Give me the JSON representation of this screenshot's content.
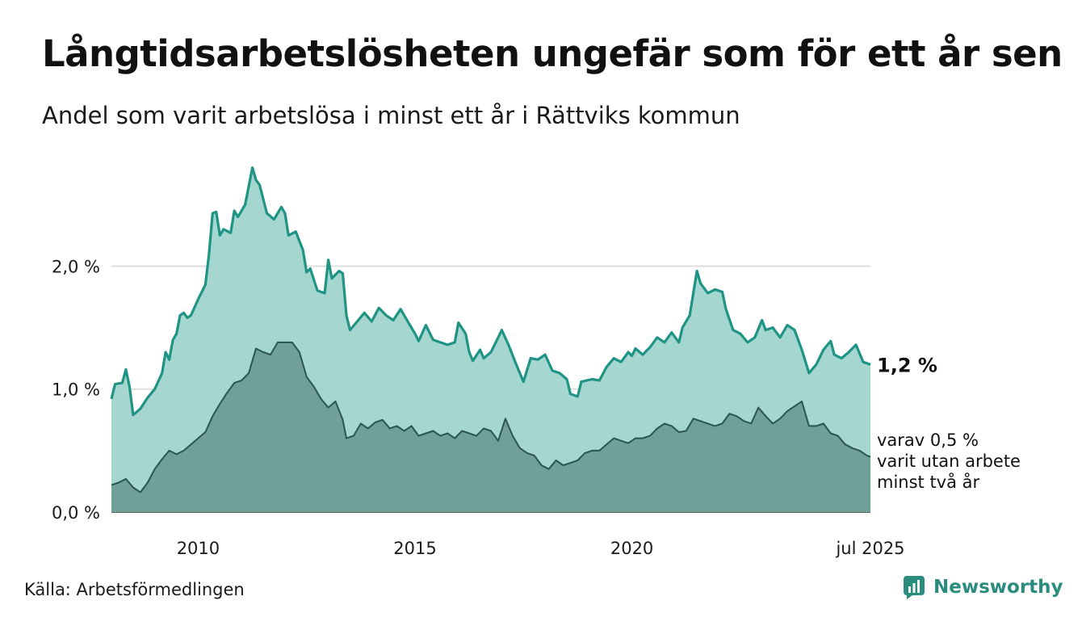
{
  "title": "Långtidsarbetslösheten ungefär som för ett år sen",
  "subtitle": "Andel som varit arbetslösa i minst ett år i Rättviks kommun",
  "source": "Källa: Arbetsförmedlingen",
  "brand": {
    "name": "Newsworthy",
    "icon": "newsworthy-logo-icon"
  },
  "colors": {
    "total_fill": "#a5d6d0",
    "total_line": "#1f9485",
    "sub_fill": "#70a098",
    "sub_line": "#2c5550",
    "grid": "#dddddd",
    "brand": "#2a8c7e"
  },
  "chart_data": {
    "type": "area",
    "xlim": [
      "2008-01",
      "2025-07"
    ],
    "ylim": [
      0,
      2.85
    ],
    "grid": true,
    "y_ticks": [
      {
        "value": 0,
        "label": "0,0 %"
      },
      {
        "value": 1,
        "label": "1,0 %"
      },
      {
        "value": 2,
        "label": "2,0 %"
      }
    ],
    "x_ticks": [
      {
        "date": "2010-01",
        "label": "2010"
      },
      {
        "date": "2015-01",
        "label": "2015"
      },
      {
        "date": "2020-01",
        "label": "2020"
      },
      {
        "date": "2025-07",
        "label": "jul 2025"
      }
    ],
    "series": [
      {
        "id": "total",
        "end_label": "1,2 %",
        "points": [
          [
            "2008-01",
            0.92
          ],
          [
            "2008-02",
            1.04
          ],
          [
            "2008-04",
            1.05
          ],
          [
            "2008-05",
            1.16
          ],
          [
            "2008-06",
            1.02
          ],
          [
            "2008-07",
            0.79
          ],
          [
            "2008-09",
            0.84
          ],
          [
            "2008-11",
            0.93
          ],
          [
            "2009-01",
            1.0
          ],
          [
            "2009-03",
            1.13
          ],
          [
            "2009-04",
            1.3
          ],
          [
            "2009-05",
            1.24
          ],
          [
            "2009-06",
            1.4
          ],
          [
            "2009-07",
            1.45
          ],
          [
            "2009-08",
            1.6
          ],
          [
            "2009-09",
            1.62
          ],
          [
            "2009-10",
            1.58
          ],
          [
            "2009-11",
            1.6
          ],
          [
            "2010-01",
            1.73
          ],
          [
            "2010-03",
            1.85
          ],
          [
            "2010-04",
            2.1
          ],
          [
            "2010-05",
            2.43
          ],
          [
            "2010-06",
            2.44
          ],
          [
            "2010-07",
            2.25
          ],
          [
            "2010-08",
            2.3
          ],
          [
            "2010-10",
            2.27
          ],
          [
            "2010-11",
            2.45
          ],
          [
            "2010-12",
            2.4
          ],
          [
            "2011-02",
            2.5
          ],
          [
            "2011-04",
            2.8
          ],
          [
            "2011-05",
            2.7
          ],
          [
            "2011-06",
            2.66
          ],
          [
            "2011-08",
            2.43
          ],
          [
            "2011-10",
            2.38
          ],
          [
            "2011-12",
            2.48
          ],
          [
            "2012-01",
            2.43
          ],
          [
            "2012-02",
            2.25
          ],
          [
            "2012-04",
            2.28
          ],
          [
            "2012-06",
            2.13
          ],
          [
            "2012-07",
            1.95
          ],
          [
            "2012-08",
            1.98
          ],
          [
            "2012-10",
            1.8
          ],
          [
            "2012-12",
            1.78
          ],
          [
            "2013-01",
            2.05
          ],
          [
            "2013-02",
            1.9
          ],
          [
            "2013-04",
            1.96
          ],
          [
            "2013-05",
            1.94
          ],
          [
            "2013-06",
            1.6
          ],
          [
            "2013-07",
            1.48
          ],
          [
            "2013-09",
            1.55
          ],
          [
            "2013-11",
            1.62
          ],
          [
            "2014-01",
            1.55
          ],
          [
            "2014-03",
            1.66
          ],
          [
            "2014-05",
            1.6
          ],
          [
            "2014-07",
            1.56
          ],
          [
            "2014-09",
            1.65
          ],
          [
            "2014-11",
            1.55
          ],
          [
            "2015-01",
            1.45
          ],
          [
            "2015-02",
            1.39
          ],
          [
            "2015-04",
            1.52
          ],
          [
            "2015-06",
            1.4
          ],
          [
            "2015-08",
            1.38
          ],
          [
            "2015-10",
            1.36
          ],
          [
            "2015-12",
            1.38
          ],
          [
            "2016-01",
            1.54
          ],
          [
            "2016-03",
            1.45
          ],
          [
            "2016-04",
            1.3
          ],
          [
            "2016-05",
            1.23
          ],
          [
            "2016-07",
            1.32
          ],
          [
            "2016-08",
            1.25
          ],
          [
            "2016-10",
            1.3
          ],
          [
            "2016-12",
            1.42
          ],
          [
            "2017-01",
            1.48
          ],
          [
            "2017-03",
            1.35
          ],
          [
            "2017-05",
            1.2
          ],
          [
            "2017-07",
            1.06
          ],
          [
            "2017-09",
            1.25
          ],
          [
            "2017-11",
            1.24
          ],
          [
            "2018-01",
            1.28
          ],
          [
            "2018-03",
            1.15
          ],
          [
            "2018-05",
            1.13
          ],
          [
            "2018-07",
            1.08
          ],
          [
            "2018-08",
            0.96
          ],
          [
            "2018-10",
            0.94
          ],
          [
            "2018-11",
            1.06
          ],
          [
            "2019-02",
            1.08
          ],
          [
            "2019-04",
            1.07
          ],
          [
            "2019-06",
            1.18
          ],
          [
            "2019-08",
            1.25
          ],
          [
            "2019-10",
            1.22
          ],
          [
            "2019-12",
            1.3
          ],
          [
            "2020-01",
            1.27
          ],
          [
            "2020-02",
            1.33
          ],
          [
            "2020-04",
            1.28
          ],
          [
            "2020-06",
            1.34
          ],
          [
            "2020-08",
            1.42
          ],
          [
            "2020-10",
            1.38
          ],
          [
            "2020-12",
            1.46
          ],
          [
            "2021-02",
            1.38
          ],
          [
            "2021-03",
            1.5
          ],
          [
            "2021-05",
            1.6
          ],
          [
            "2021-07",
            1.96
          ],
          [
            "2021-08",
            1.86
          ],
          [
            "2021-10",
            1.78
          ],
          [
            "2021-12",
            1.81
          ],
          [
            "2022-02",
            1.79
          ],
          [
            "2022-03",
            1.65
          ],
          [
            "2022-05",
            1.48
          ],
          [
            "2022-07",
            1.45
          ],
          [
            "2022-09",
            1.38
          ],
          [
            "2022-11",
            1.42
          ],
          [
            "2023-01",
            1.56
          ],
          [
            "2023-02",
            1.48
          ],
          [
            "2023-04",
            1.5
          ],
          [
            "2023-06",
            1.42
          ],
          [
            "2023-08",
            1.52
          ],
          [
            "2023-10",
            1.48
          ],
          [
            "2023-12",
            1.32
          ],
          [
            "2024-02",
            1.13
          ],
          [
            "2024-04",
            1.2
          ],
          [
            "2024-06",
            1.32
          ],
          [
            "2024-08",
            1.39
          ],
          [
            "2024-09",
            1.28
          ],
          [
            "2024-11",
            1.25
          ],
          [
            "2025-01",
            1.3
          ],
          [
            "2025-03",
            1.36
          ],
          [
            "2025-05",
            1.22
          ],
          [
            "2025-07",
            1.2
          ]
        ]
      },
      {
        "id": "two_years",
        "end_label": [
          "varav 0,5 %",
          "varit utan arbete",
          "minst två år"
        ],
        "points": [
          [
            "2008-01",
            0.22
          ],
          [
            "2008-03",
            0.24
          ],
          [
            "2008-05",
            0.27
          ],
          [
            "2008-07",
            0.2
          ],
          [
            "2008-09",
            0.16
          ],
          [
            "2008-11",
            0.24
          ],
          [
            "2009-01",
            0.35
          ],
          [
            "2009-03",
            0.43
          ],
          [
            "2009-05",
            0.5
          ],
          [
            "2009-07",
            0.47
          ],
          [
            "2009-09",
            0.5
          ],
          [
            "2009-11",
            0.55
          ],
          [
            "2010-01",
            0.6
          ],
          [
            "2010-03",
            0.65
          ],
          [
            "2010-05",
            0.78
          ],
          [
            "2010-07",
            0.88
          ],
          [
            "2010-09",
            0.97
          ],
          [
            "2010-11",
            1.05
          ],
          [
            "2011-01",
            1.07
          ],
          [
            "2011-03",
            1.13
          ],
          [
            "2011-05",
            1.33
          ],
          [
            "2011-07",
            1.3
          ],
          [
            "2011-09",
            1.28
          ],
          [
            "2011-11",
            1.38
          ],
          [
            "2012-01",
            1.38
          ],
          [
            "2012-03",
            1.38
          ],
          [
            "2012-05",
            1.3
          ],
          [
            "2012-07",
            1.1
          ],
          [
            "2012-09",
            1.02
          ],
          [
            "2012-11",
            0.92
          ],
          [
            "2013-01",
            0.85
          ],
          [
            "2013-03",
            0.9
          ],
          [
            "2013-05",
            0.75
          ],
          [
            "2013-06",
            0.6
          ],
          [
            "2013-08",
            0.62
          ],
          [
            "2013-10",
            0.72
          ],
          [
            "2013-12",
            0.68
          ],
          [
            "2014-02",
            0.73
          ],
          [
            "2014-04",
            0.75
          ],
          [
            "2014-06",
            0.68
          ],
          [
            "2014-08",
            0.7
          ],
          [
            "2014-10",
            0.66
          ],
          [
            "2014-12",
            0.7
          ],
          [
            "2015-02",
            0.62
          ],
          [
            "2015-04",
            0.64
          ],
          [
            "2015-06",
            0.66
          ],
          [
            "2015-08",
            0.62
          ],
          [
            "2015-10",
            0.64
          ],
          [
            "2015-12",
            0.6
          ],
          [
            "2016-02",
            0.66
          ],
          [
            "2016-04",
            0.64
          ],
          [
            "2016-06",
            0.62
          ],
          [
            "2016-08",
            0.68
          ],
          [
            "2016-10",
            0.66
          ],
          [
            "2016-12",
            0.58
          ],
          [
            "2017-02",
            0.76
          ],
          [
            "2017-04",
            0.62
          ],
          [
            "2017-06",
            0.52
          ],
          [
            "2017-08",
            0.48
          ],
          [
            "2017-10",
            0.46
          ],
          [
            "2017-12",
            0.38
          ],
          [
            "2018-02",
            0.35
          ],
          [
            "2018-04",
            0.42
          ],
          [
            "2018-06",
            0.38
          ],
          [
            "2018-08",
            0.4
          ],
          [
            "2018-10",
            0.42
          ],
          [
            "2018-12",
            0.48
          ],
          [
            "2019-02",
            0.5
          ],
          [
            "2019-04",
            0.5
          ],
          [
            "2019-06",
            0.55
          ],
          [
            "2019-08",
            0.6
          ],
          [
            "2019-10",
            0.58
          ],
          [
            "2019-12",
            0.56
          ],
          [
            "2020-02",
            0.6
          ],
          [
            "2020-04",
            0.6
          ],
          [
            "2020-06",
            0.62
          ],
          [
            "2020-08",
            0.68
          ],
          [
            "2020-10",
            0.72
          ],
          [
            "2020-12",
            0.7
          ],
          [
            "2021-02",
            0.65
          ],
          [
            "2021-04",
            0.66
          ],
          [
            "2021-06",
            0.76
          ],
          [
            "2021-08",
            0.74
          ],
          [
            "2021-10",
            0.72
          ],
          [
            "2021-12",
            0.7
          ],
          [
            "2022-02",
            0.72
          ],
          [
            "2022-04",
            0.8
          ],
          [
            "2022-06",
            0.78
          ],
          [
            "2022-08",
            0.74
          ],
          [
            "2022-10",
            0.72
          ],
          [
            "2022-12",
            0.85
          ],
          [
            "2023-02",
            0.78
          ],
          [
            "2023-04",
            0.72
          ],
          [
            "2023-06",
            0.76
          ],
          [
            "2023-08",
            0.82
          ],
          [
            "2023-10",
            0.86
          ],
          [
            "2023-12",
            0.9
          ],
          [
            "2024-02",
            0.7
          ],
          [
            "2024-04",
            0.7
          ],
          [
            "2024-06",
            0.72
          ],
          [
            "2024-08",
            0.64
          ],
          [
            "2024-10",
            0.62
          ],
          [
            "2024-12",
            0.55
          ],
          [
            "2025-02",
            0.52
          ],
          [
            "2025-04",
            0.5
          ],
          [
            "2025-06",
            0.46
          ],
          [
            "2025-07",
            0.45
          ]
        ]
      }
    ]
  }
}
